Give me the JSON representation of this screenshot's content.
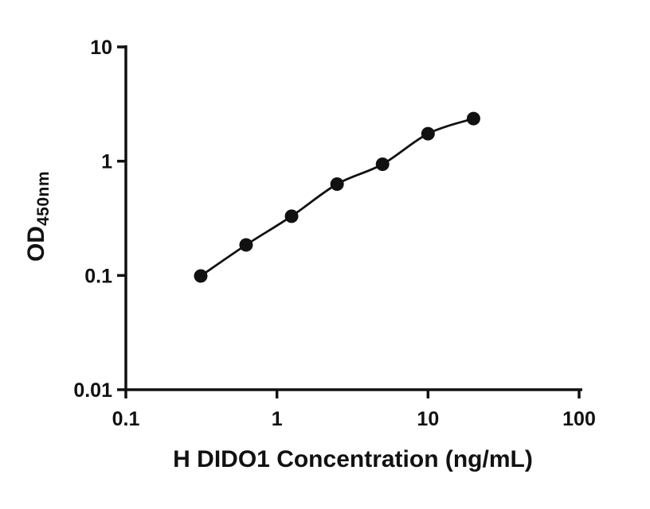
{
  "chart_data": {
    "type": "scatter",
    "curve": "smooth-fit-line",
    "title": "",
    "xlabel": "H DIDO1 Concentration (ng/mL)",
    "ylabel": "OD450nm",
    "ylabel_main": "OD",
    "ylabel_sub": "450nm",
    "x_scale": "log",
    "y_scale": "log",
    "xlim": [
      0.1,
      100
    ],
    "ylim": [
      0.01,
      10
    ],
    "x_ticks": [
      0.1,
      1,
      10,
      100
    ],
    "x_tick_labels": [
      "0.1",
      "1",
      "10",
      "100"
    ],
    "y_ticks": [
      0.01,
      0.1,
      1,
      10
    ],
    "y_tick_labels": [
      "0.01",
      "0.1",
      "1",
      "10"
    ],
    "x": [
      0.313,
      0.625,
      1.25,
      2.5,
      5,
      10,
      20
    ],
    "y": [
      0.099,
      0.185,
      0.33,
      0.63,
      0.94,
      1.74,
      2.36
    ],
    "grid": false,
    "legend": false,
    "axis_color": "#111111",
    "line_color": "#111111",
    "marker_color": "#111111",
    "marker_radius": 8.5
  }
}
